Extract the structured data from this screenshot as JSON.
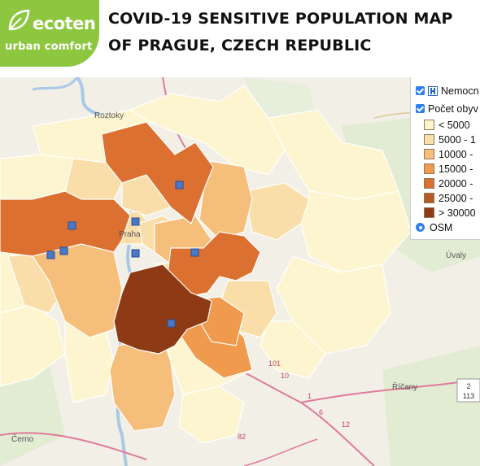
{
  "header": {
    "logo": {
      "brand": "ecoten",
      "tagline": "urban comfort",
      "color": "#8dc63f"
    },
    "title_line1": "COVID-19 SENSITIVE POPULATION MAP",
    "title_line2": "OF PRAGUE, CZECH REPUBLIC"
  },
  "legend": {
    "hospital_label": "Nemocn",
    "population_label": "Počet obyv",
    "osm_label": "OSM",
    "classes": [
      {
        "label": "< 5000",
        "color": "#fdf5cf"
      },
      {
        "label": "5000 - 1",
        "color": "#f9deaa"
      },
      {
        "label": "10000 -",
        "color": "#f5be7a"
      },
      {
        "label": "15000 -",
        "color": "#ef9a4c"
      },
      {
        "label": "20000 -",
        "color": "#db7031"
      },
      {
        "label": "25000 -",
        "color": "#b55a24"
      },
      {
        "label": "> 30000",
        "color": "#8e3a14"
      }
    ]
  },
  "map_labels": {
    "roztoky": "Roztoky",
    "praha": "Praha",
    "uvaly": "Úvaly",
    "ricany": "Říčany",
    "cernosice": "Černo",
    "road_2": "2",
    "road_113": "113",
    "road_1": "1",
    "road_12": "12",
    "road_10": "10",
    "road_101": "101",
    "road_82": "82",
    "road_6": "6"
  },
  "colors": {
    "map_bg": "#f2efe6",
    "boundary": "#ffffff",
    "hospital_marker": "#4a78c8"
  }
}
